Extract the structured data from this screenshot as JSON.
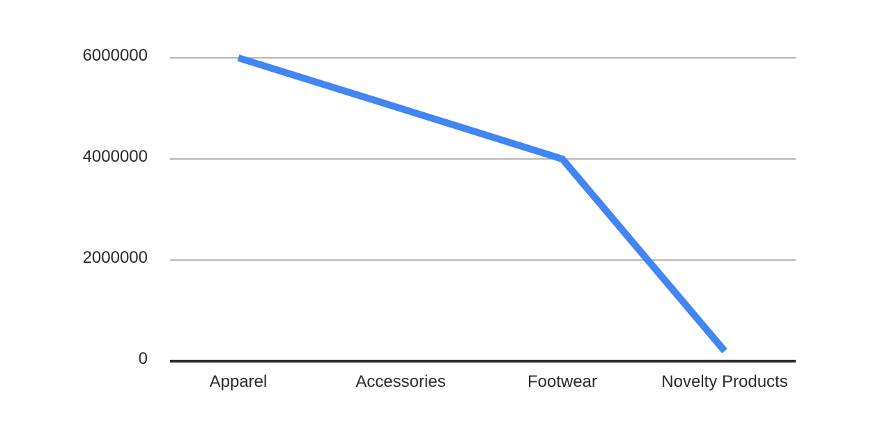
{
  "chart_data": {
    "type": "line",
    "title": "",
    "xlabel": "",
    "ylabel": "",
    "categories": [
      "Apparel",
      "Accessories",
      "Footwear",
      "Novelty Products"
    ],
    "series": [
      {
        "values": [
          6000000,
          5000000,
          4000000,
          200000
        ],
        "color": "#4285f4"
      }
    ],
    "yticks": [
      0,
      2000000,
      4000000,
      6000000
    ],
    "ytick_labels": [
      "0",
      "2000000",
      "4000000",
      "6000000"
    ],
    "ylim": [
      0,
      6000000
    ],
    "grid": true,
    "legend": "none",
    "colors": {
      "gridline": "#9e9e9e",
      "baseline": "#2b2b2b",
      "text": "#2b2b2b"
    }
  }
}
